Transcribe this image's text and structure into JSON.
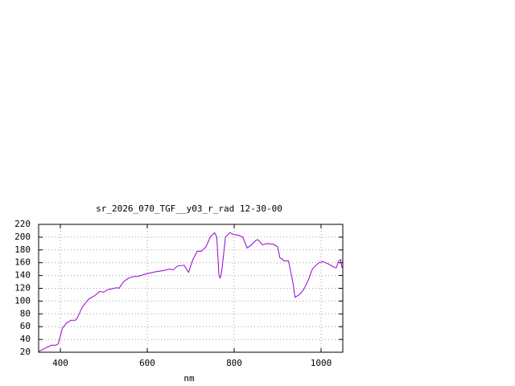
{
  "chart_data": {
    "type": "line",
    "title": "sr_2026_070_TGF__y03_r_rad 12-30-00",
    "xlabel": "nm",
    "color": "#9400d3",
    "grid": true,
    "xlim": [
      350,
      1050
    ],
    "xticks": [
      400,
      600,
      800,
      1000
    ],
    "ylim": [
      20,
      220
    ],
    "yticks": [
      20,
      40,
      60,
      80,
      100,
      120,
      140,
      160,
      180,
      200,
      220
    ],
    "x": [
      350,
      370,
      380,
      390,
      395,
      400,
      405,
      415,
      425,
      435,
      440,
      450,
      465,
      480,
      490,
      500,
      510,
      530,
      535,
      545,
      555,
      565,
      580,
      600,
      620,
      640,
      650,
      660,
      670,
      685,
      695,
      705,
      715,
      725,
      735,
      745,
      755,
      760,
      765,
      768,
      772,
      780,
      790,
      800,
      810,
      820,
      830,
      840,
      850,
      855,
      865,
      875,
      890,
      900,
      905,
      915,
      925,
      935,
      940,
      950,
      960,
      970,
      980,
      990,
      995,
      1005,
      1010,
      1020,
      1025,
      1030,
      1035,
      1040,
      1045,
      1048
    ],
    "values": [
      21,
      28,
      31,
      31,
      33,
      45,
      58,
      66,
      70,
      70,
      75,
      90,
      103,
      109,
      115,
      114,
      118,
      121,
      120,
      130,
      135,
      138,
      139,
      143,
      146,
      148,
      150,
      149,
      155,
      156,
      145,
      165,
      178,
      178,
      185,
      200,
      207,
      200,
      140,
      136,
      150,
      200,
      207,
      204,
      203,
      200,
      183,
      188,
      195,
      196,
      188,
      190,
      189,
      185,
      168,
      163,
      163,
      130,
      106,
      110,
      118,
      132,
      150,
      157,
      160,
      162,
      160,
      157,
      155,
      153,
      152,
      162,
      165,
      152
    ]
  }
}
